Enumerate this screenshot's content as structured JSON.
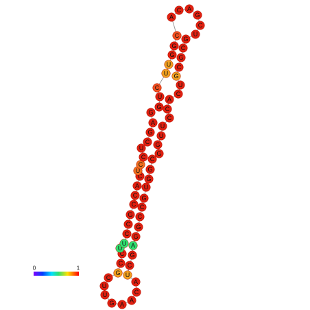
{
  "nodes": [
    {
      "label": "C",
      "color": "#e02010"
    },
    {
      "label": "G",
      "color": "#f0a020"
    },
    {
      "label": "C",
      "color": "#e02010"
    },
    {
      "label": "C",
      "color": "#e02010"
    },
    {
      "label": "U",
      "color": "#30e070"
    },
    {
      "label": "U",
      "color": "#30e070"
    },
    {
      "label": "C",
      "color": "#e02010"
    },
    {
      "label": "C",
      "color": "#e02010"
    },
    {
      "label": "G",
      "color": "#e02010"
    },
    {
      "label": "C",
      "color": "#e02010"
    },
    {
      "label": "C",
      "color": "#e02010"
    },
    {
      "label": "A",
      "color": "#e02010"
    },
    {
      "label": "C",
      "color": "#e02010"
    },
    {
      "label": "U",
      "color": "#f07020"
    },
    {
      "label": "C",
      "color": "#f07020"
    },
    {
      "label": "C",
      "color": "#e02010"
    },
    {
      "label": "U",
      "color": "#e02010"
    },
    {
      "label": "C",
      "color": "#e02010"
    },
    {
      "label": "G",
      "color": "#e02010"
    },
    {
      "label": "A",
      "color": "#e02010"
    },
    {
      "label": "G",
      "color": "#e02010"
    },
    {
      "label": "G",
      "color": "#e02010"
    },
    {
      "label": "U",
      "color": "#e02010"
    },
    {
      "label": "C",
      "color": "#f05020"
    },
    {
      "label": "U",
      "color": "#f0a020"
    },
    {
      "label": "U",
      "color": "#f0a020"
    },
    {
      "label": "G",
      "color": "#e02010"
    },
    {
      "label": "G",
      "color": "#e02010"
    },
    {
      "label": "C",
      "color": "#f05020"
    },
    {
      "label": "A",
      "color": "#e02010"
    },
    {
      "label": "C",
      "color": "#e02010"
    },
    {
      "label": "A",
      "color": "#e02010"
    },
    {
      "label": "G",
      "color": "#e02010"
    },
    {
      "label": "C",
      "color": "#e02010"
    },
    {
      "label": "U",
      "color": "#e02010"
    },
    {
      "label": "G",
      "color": "#e02010"
    },
    {
      "label": "C",
      "color": "#e02010"
    },
    {
      "label": "G",
      "color": "#e02010"
    },
    {
      "label": "C",
      "color": "#e02010"
    },
    {
      "label": "G",
      "color": "#f0a020"
    },
    {
      "label": "U",
      "color": "#e02010"
    },
    {
      "label": "C",
      "color": "#e02010"
    },
    {
      "label": "A",
      "color": "#e02010"
    },
    {
      "label": "C",
      "color": "#e02010"
    },
    {
      "label": "C",
      "color": "#e02010"
    },
    {
      "label": "U",
      "color": "#e02010"
    },
    {
      "label": "U",
      "color": "#e02010"
    },
    {
      "label": "G",
      "color": "#e02010"
    },
    {
      "label": "G",
      "color": "#e02010"
    },
    {
      "label": "C",
      "color": "#e02010"
    },
    {
      "label": "G",
      "color": "#e02010"
    },
    {
      "label": "G",
      "color": "#e02010"
    },
    {
      "label": "U",
      "color": "#e02010"
    },
    {
      "label": "G",
      "color": "#e02010"
    },
    {
      "label": "C",
      "color": "#e02010"
    },
    {
      "label": "C",
      "color": "#e02010"
    },
    {
      "label": "G",
      "color": "#e02010"
    },
    {
      "label": "G",
      "color": "#e02010"
    },
    {
      "label": "A",
      "color": "#30e070"
    },
    {
      "label": "G",
      "color": "#e02010"
    },
    {
      "label": "C",
      "color": "#e02010"
    },
    {
      "label": "U",
      "color": "#f0a020"
    },
    {
      "label": "A",
      "color": "#e02010"
    },
    {
      "label": "C",
      "color": "#e02010"
    },
    {
      "label": "A",
      "color": "#e02010"
    },
    {
      "label": "A",
      "color": "#e02010"
    },
    {
      "label": "G",
      "color": "#e02010"
    },
    {
      "label": "U",
      "color": "#e02010"
    },
    {
      "label": "U",
      "color": "#e02010"
    }
  ],
  "colorbar": {
    "min_label": "0",
    "max_label": "1"
  }
}
